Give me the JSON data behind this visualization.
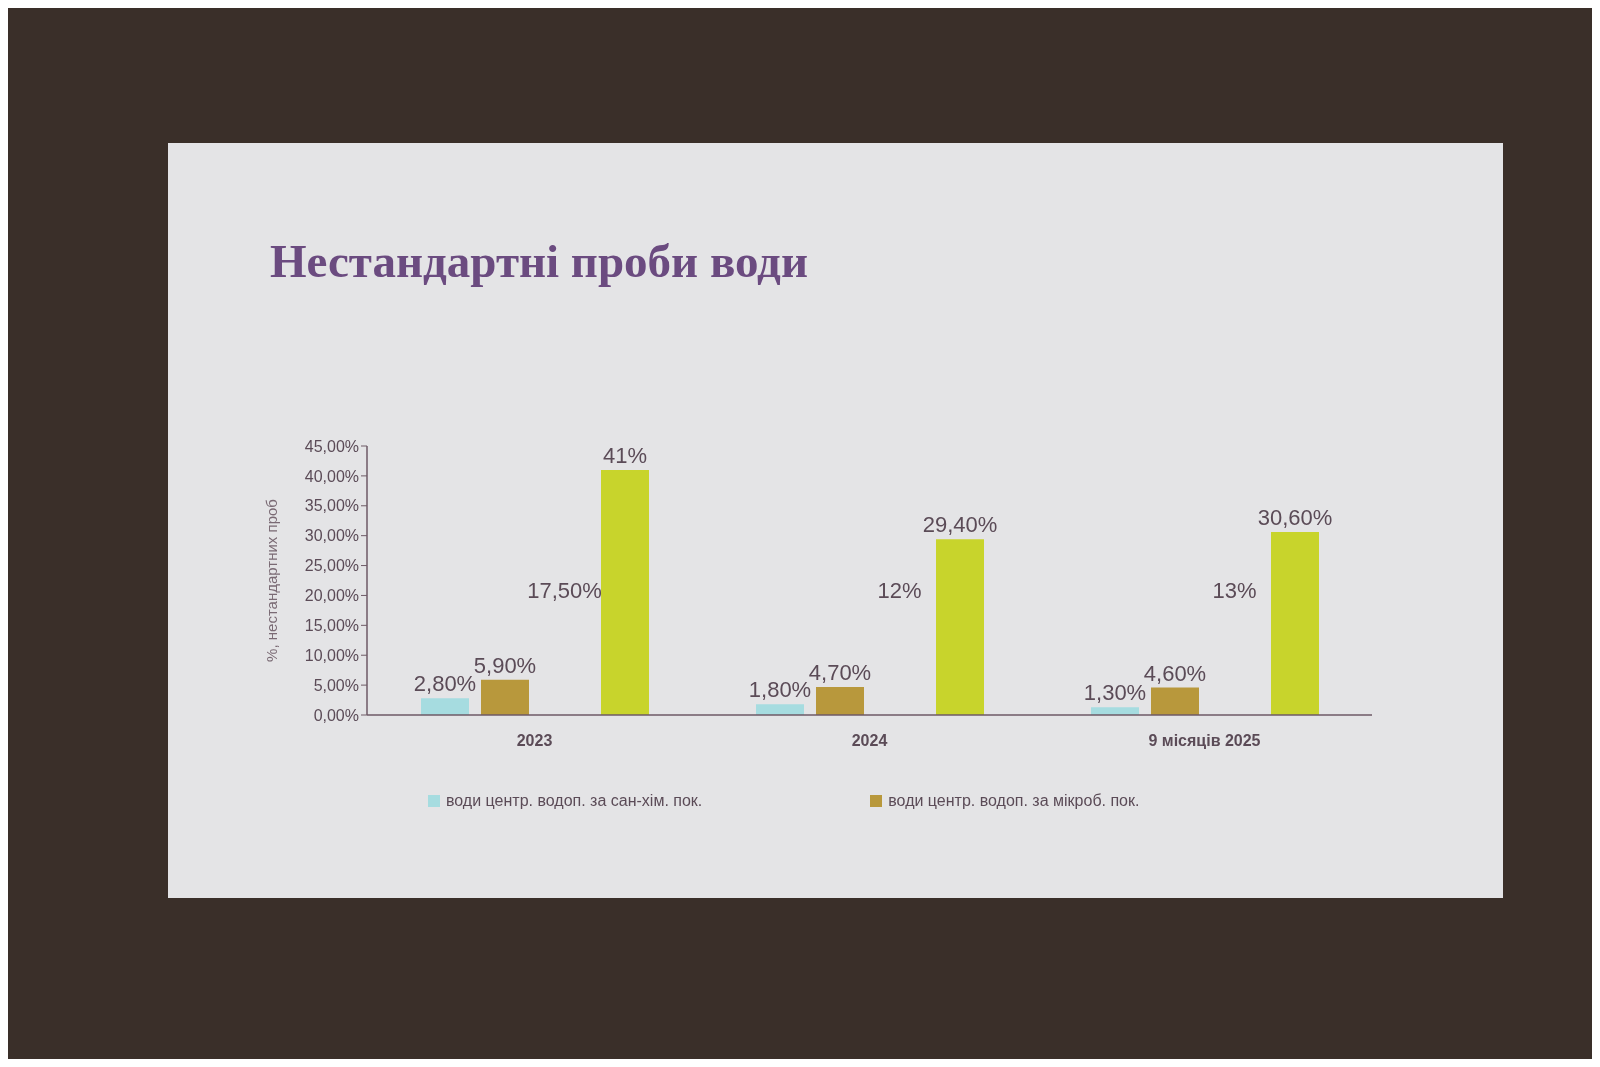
{
  "chart_data": {
    "type": "bar",
    "title": "Нестандартні проби води",
    "ylabel": "%, нестандартних проб",
    "categories": [
      "2023",
      "2024",
      "9 місяців 2025"
    ],
    "series": [
      {
        "name": "води центр. водоп. за сан-хім. пок.",
        "color": "#a6dce0",
        "values": [
          2.8,
          1.8,
          1.3
        ],
        "value_labels": [
          "2,80%",
          "1,80%",
          "1,30%"
        ]
      },
      {
        "name": "води центр. водоп. за мікроб. пок.",
        "color": "#b8983c",
        "values": [
          5.9,
          4.7,
          4.6
        ],
        "value_labels": [
          "5,90%",
          "4,70%",
          "4,60%"
        ]
      },
      {
        "color": "#c8d42c",
        "values": [
          41,
          29.4,
          30.6
        ],
        "value_labels": [
          "41%",
          "29,40%",
          "30,60%"
        ]
      }
    ],
    "ylim": [
      0,
      45
    ],
    "yticks": [
      {
        "value": 0,
        "label": "0,00%"
      },
      {
        "value": 5,
        "label": "5,00%"
      },
      {
        "value": 10,
        "label": "10,00%"
      },
      {
        "value": 15,
        "label": "15,00%"
      },
      {
        "value": 20,
        "label": "20,00%"
      },
      {
        "value": 25,
        "label": "25,00%"
      },
      {
        "value": 30,
        "label": "30,00%"
      },
      {
        "value": 35,
        "label": "35,00%"
      },
      {
        "value": 40,
        "label": "40,00%"
      },
      {
        "value": 45,
        "label": "45,00%"
      }
    ],
    "annotations": [
      "17,50%",
      "12%",
      "13%"
    ],
    "legend": "bottom"
  }
}
